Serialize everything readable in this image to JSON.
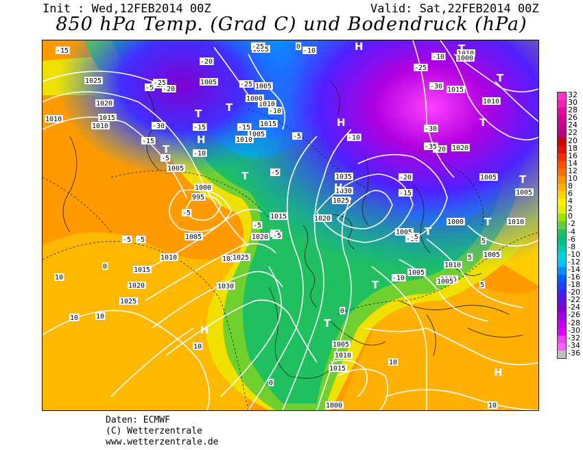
{
  "header": {
    "init_label": "Init : Wed,12FEB2014 00Z",
    "valid_label": "Valid: Sat,22FEB2014 00Z",
    "title": "850 hPa Temp. (Grad C) und Bodendruck (hPa)"
  },
  "legend": {
    "ticks": [
      "32",
      "30",
      "28",
      "26",
      "24",
      "22",
      "20",
      "18",
      "16",
      "14",
      "12",
      "10",
      "8",
      "6",
      "4",
      "2",
      "0",
      "-2",
      "-4",
      "-6",
      "-8",
      "-10",
      "-12",
      "-14",
      "-16",
      "-18",
      "-20",
      "-22",
      "-24",
      "-26",
      "-28",
      "-30",
      "-32",
      "-34",
      "-36"
    ],
    "colors": [
      "#ff33cc",
      "#f21fb6",
      "#e8089c",
      "#d40090",
      "#c4008c",
      "#b00080",
      "#cc0000",
      "#e01010",
      "#f03000",
      "#ff5000",
      "#ff7000",
      "#ff9000",
      "#ffb000",
      "#ffd000",
      "#ffee00",
      "#e0f000",
      "#a0e000",
      "#60d040",
      "#20c060",
      "#00c080",
      "#00c8b0",
      "#00d0e0",
      "#00c0ff",
      "#0090ff",
      "#0060ff",
      "#2040ff",
      "#4020f0",
      "#6010e0",
      "#8000d0",
      "#a000e0",
      "#c000f0",
      "#e000ff",
      "#f040ff",
      "#ff60ff",
      "#c0c0c0"
    ]
  },
  "map": {
    "pressure_labels": [
      "1025",
      "1020",
      "1010",
      "1015",
      "1010",
      "1005",
      "1000",
      "995",
      "1005",
      "1010",
      "1015",
      "1020",
      "1025",
      "1030",
      "1025",
      "1015",
      "1020",
      "1025",
      "1015",
      "1010",
      "1005",
      "1000",
      "1005",
      "1010",
      "1005",
      "1005",
      "1035",
      "1030",
      "1025",
      "1020",
      "1020",
      "1010",
      "1015",
      "1010",
      "1000",
      "1005",
      "1000",
      "1010",
      "1005",
      "1005",
      "1010",
      "1005",
      "1005",
      "1005",
      "1010",
      "1015",
      "1000",
      "1005",
      "1005"
    ],
    "temp_labels": [
      "-15",
      "-25",
      "-20",
      "-25",
      "-30",
      "-15",
      "-10",
      "-15",
      "-10",
      "-5",
      "-5",
      "-5",
      "-5",
      "-5",
      "-5",
      "-5",
      "-10",
      "-10",
      "-5",
      "-20",
      "-15",
      "-10",
      "-5",
      "-5",
      "-20",
      "-30",
      "-25",
      "-30",
      "-35",
      "-25",
      "0",
      "0",
      "10",
      "10",
      "10",
      "10",
      "0",
      "5",
      "10",
      "10",
      "5",
      "5",
      "-15",
      "-20",
      "-25",
      "-10",
      "0",
      "-5",
      "-10"
    ],
    "system_labels": [
      "H",
      "T",
      "T",
      "T",
      "T",
      "H",
      "T",
      "T",
      "H",
      "T",
      "H",
      "H",
      "T",
      "T",
      "T",
      "H",
      "T",
      "T"
    ]
  },
  "credits": {
    "line1": "Daten: ECMWF",
    "line2": "(C) Wetterzentrale",
    "line3": "www.wetterzentrale.de"
  }
}
